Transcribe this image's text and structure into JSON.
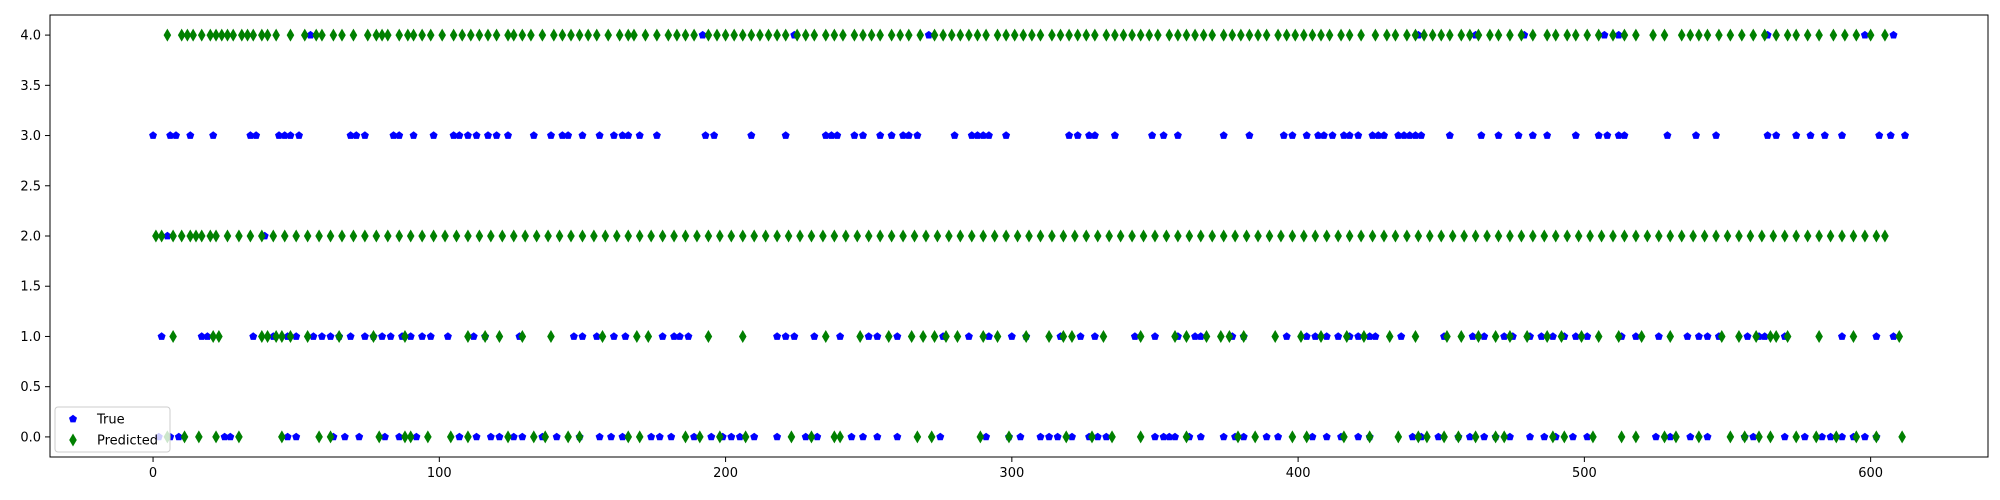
{
  "chart_data": {
    "type": "scatter",
    "title": "",
    "xlabel": "",
    "ylabel": "",
    "xlim": [
      -36,
      641
    ],
    "ylim": [
      -0.2,
      4.2
    ],
    "x_ticks": [
      0,
      100,
      200,
      300,
      400,
      500,
      600
    ],
    "y_ticks": [
      0.0,
      0.5,
      1.0,
      1.5,
      2.0,
      2.5,
      3.0,
      3.5,
      4.0
    ],
    "x_tick_labels": [
      "0",
      "100",
      "200",
      "300",
      "400",
      "500",
      "600"
    ],
    "y_tick_labels": [
      "0.0",
      "0.5",
      "1.0",
      "1.5",
      "2.0",
      "2.5",
      "3.0",
      "3.5",
      "4.0"
    ],
    "grid": false,
    "legend_position": "lower-left",
    "series": [
      {
        "name": "True",
        "marker": "pentagon",
        "color": "#0000ff",
        "points": {
          "4": [
            55,
            192,
            224,
            271,
            442,
            462,
            479,
            507,
            512,
            564,
            598,
            608
          ],
          "3": [
            0,
            6,
            8,
            13,
            21,
            34,
            36,
            44,
            46,
            48,
            51,
            69,
            71,
            74,
            84,
            86,
            91,
            98,
            105,
            107,
            110,
            113,
            117,
            120,
            124,
            133,
            139,
            143,
            145,
            150,
            156,
            161,
            164,
            166,
            170,
            176,
            193,
            196,
            209,
            221,
            235,
            237,
            239,
            245,
            248,
            254,
            258,
            262,
            264,
            267,
            280,
            286,
            288,
            290,
            292,
            298,
            320,
            323,
            327,
            329,
            336,
            349,
            353,
            358,
            374,
            383,
            395,
            398,
            403,
            407,
            409,
            412,
            416,
            418,
            421,
            426,
            428,
            430,
            435,
            437,
            439,
            441,
            443,
            453,
            464,
            470,
            477,
            482,
            487,
            497,
            505,
            508,
            512,
            514,
            529,
            539,
            546,
            564,
            567,
            574,
            579,
            584,
            590,
            603,
            607,
            612
          ],
          "2": [
            5,
            39
          ],
          "1": [
            3,
            17,
            19,
            35,
            42,
            47,
            50,
            56,
            59,
            62,
            65,
            69,
            74,
            77,
            80,
            83,
            87,
            90,
            94,
            97,
            103,
            112,
            116,
            128,
            147,
            150,
            155,
            161,
            165,
            178,
            182,
            184,
            187,
            218,
            221,
            224,
            231,
            240,
            250,
            253,
            260,
            276,
            285,
            292,
            300,
            305,
            317,
            324,
            329,
            343,
            350,
            358,
            364,
            366,
            377,
            381,
            396,
            403,
            406,
            410,
            414,
            418,
            421,
            425,
            427,
            436,
            451,
            461,
            465,
            472,
            475,
            481,
            485,
            489,
            493,
            497,
            501,
            513,
            518,
            526,
            536,
            540,
            543,
            547,
            557,
            561,
            563,
            570,
            590,
            602,
            608
          ],
          "0": [
            2,
            6,
            9,
            25,
            27,
            47,
            50,
            63,
            67,
            72,
            81,
            86,
            92,
            107,
            113,
            118,
            121,
            126,
            129,
            136,
            141,
            149,
            156,
            160,
            164,
            174,
            177,
            181,
            189,
            195,
            199,
            202,
            205,
            210,
            218,
            228,
            232,
            244,
            248,
            253,
            260,
            275,
            291,
            299,
            303,
            310,
            313,
            316,
            321,
            327,
            330,
            333,
            350,
            353,
            355,
            357,
            362,
            366,
            374,
            378,
            381,
            389,
            393,
            405,
            410,
            415,
            421,
            425,
            440,
            443,
            449,
            456,
            460,
            465,
            469,
            474,
            481,
            486,
            490,
            496,
            501,
            525,
            530,
            537,
            543,
            556,
            559,
            570,
            577,
            583,
            586,
            590,
            594,
            598,
            602
          ]
        }
      },
      {
        "name": "Predicted",
        "marker": "thin-diamond",
        "color": "#008000",
        "points": {
          "4": [
            5,
            10,
            12,
            14,
            17,
            20,
            22,
            24,
            26,
            28,
            31,
            33,
            35,
            38,
            40,
            43,
            48,
            53,
            57,
            59,
            63,
            66,
            70,
            75,
            78,
            80,
            82,
            86,
            89,
            91,
            94,
            97,
            101,
            105,
            108,
            111,
            114,
            117,
            120,
            124,
            126,
            129,
            132,
            136,
            140,
            143,
            146,
            149,
            152,
            155,
            159,
            163,
            166,
            168,
            172,
            176,
            180,
            183,
            186,
            189,
            194,
            197,
            200,
            203,
            206,
            209,
            212,
            215,
            218,
            221,
            225,
            228,
            231,
            235,
            238,
            241,
            245,
            248,
            251,
            254,
            258,
            261,
            264,
            268,
            273,
            276,
            279,
            282,
            285,
            288,
            291,
            295,
            298,
            301,
            304,
            307,
            310,
            314,
            317,
            320,
            323,
            326,
            329,
            333,
            336,
            339,
            342,
            345,
            348,
            351,
            355,
            358,
            361,
            364,
            367,
            370,
            374,
            377,
            380,
            383,
            386,
            389,
            393,
            396,
            399,
            402,
            405,
            408,
            411,
            415,
            418,
            422,
            427,
            431,
            434,
            438,
            441,
            444,
            447,
            450,
            453,
            457,
            460,
            463,
            467,
            470,
            474,
            478,
            482,
            487,
            490,
            494,
            497,
            501,
            505,
            510,
            514,
            518,
            524,
            528,
            534,
            537,
            540,
            543,
            547,
            551,
            555,
            559,
            563,
            567,
            571,
            574,
            578,
            582,
            587,
            591,
            595,
            600,
            605
          ],
          "2": [
            1,
            3,
            7,
            10,
            13,
            15,
            17,
            20,
            22,
            26,
            30,
            34,
            38,
            42,
            46,
            50,
            54,
            58,
            62,
            66,
            70,
            74,
            78,
            82,
            86,
            90,
            94,
            98,
            102,
            106,
            110,
            114,
            118,
            122,
            126,
            130,
            134,
            138,
            142,
            146,
            150,
            154,
            158,
            162,
            166,
            170,
            174,
            178,
            182,
            186,
            190,
            194,
            198,
            202,
            206,
            210,
            214,
            218,
            222,
            226,
            230,
            234,
            238,
            242,
            246,
            250,
            254,
            258,
            262,
            266,
            270,
            274,
            278,
            282,
            286,
            290,
            294,
            298,
            302,
            306,
            310,
            314,
            318,
            322,
            326,
            330,
            334,
            338,
            342,
            346,
            350,
            354,
            358,
            362,
            366,
            370,
            374,
            378,
            382,
            386,
            390,
            394,
            398,
            402,
            406,
            410,
            414,
            418,
            422,
            426,
            430,
            434,
            438,
            442,
            446,
            450,
            454,
            458,
            462,
            466,
            470,
            474,
            478,
            482,
            486,
            490,
            494,
            498,
            502,
            506,
            510,
            514,
            518,
            522,
            526,
            530,
            534,
            538,
            542,
            546,
            550,
            554,
            558,
            562,
            566,
            570,
            574,
            578,
            582,
            586,
            590,
            594,
            598,
            602,
            605
          ],
          "1": [
            7,
            21,
            23,
            38,
            40,
            43,
            45,
            48,
            54,
            65,
            77,
            88,
            110,
            116,
            121,
            129,
            139,
            157,
            169,
            173,
            194,
            206,
            235,
            247,
            257,
            265,
            269,
            273,
            277,
            281,
            290,
            295,
            305,
            313,
            318,
            321,
            332,
            345,
            357,
            361,
            368,
            373,
            376,
            381,
            392,
            401,
            408,
            417,
            423,
            432,
            441,
            452,
            457,
            463,
            469,
            474,
            480,
            487,
            492,
            499,
            505,
            512,
            520,
            530,
            548,
            554,
            560,
            565,
            567,
            571,
            582,
            594,
            610
          ],
          "0": [
            5,
            11,
            16,
            22,
            30,
            45,
            58,
            62,
            79,
            88,
            90,
            96,
            104,
            110,
            124,
            133,
            137,
            145,
            149,
            166,
            170,
            186,
            191,
            198,
            207,
            223,
            230,
            238,
            240,
            267,
            272,
            289,
            299,
            319,
            328,
            335,
            345,
            361,
            379,
            385,
            398,
            403,
            416,
            425,
            435,
            442,
            445,
            451,
            456,
            462,
            469,
            472,
            489,
            493,
            503,
            513,
            518,
            528,
            532,
            540,
            551,
            556,
            561,
            565,
            574,
            581,
            588,
            595,
            602,
            611
          ]
        }
      }
    ]
  }
}
